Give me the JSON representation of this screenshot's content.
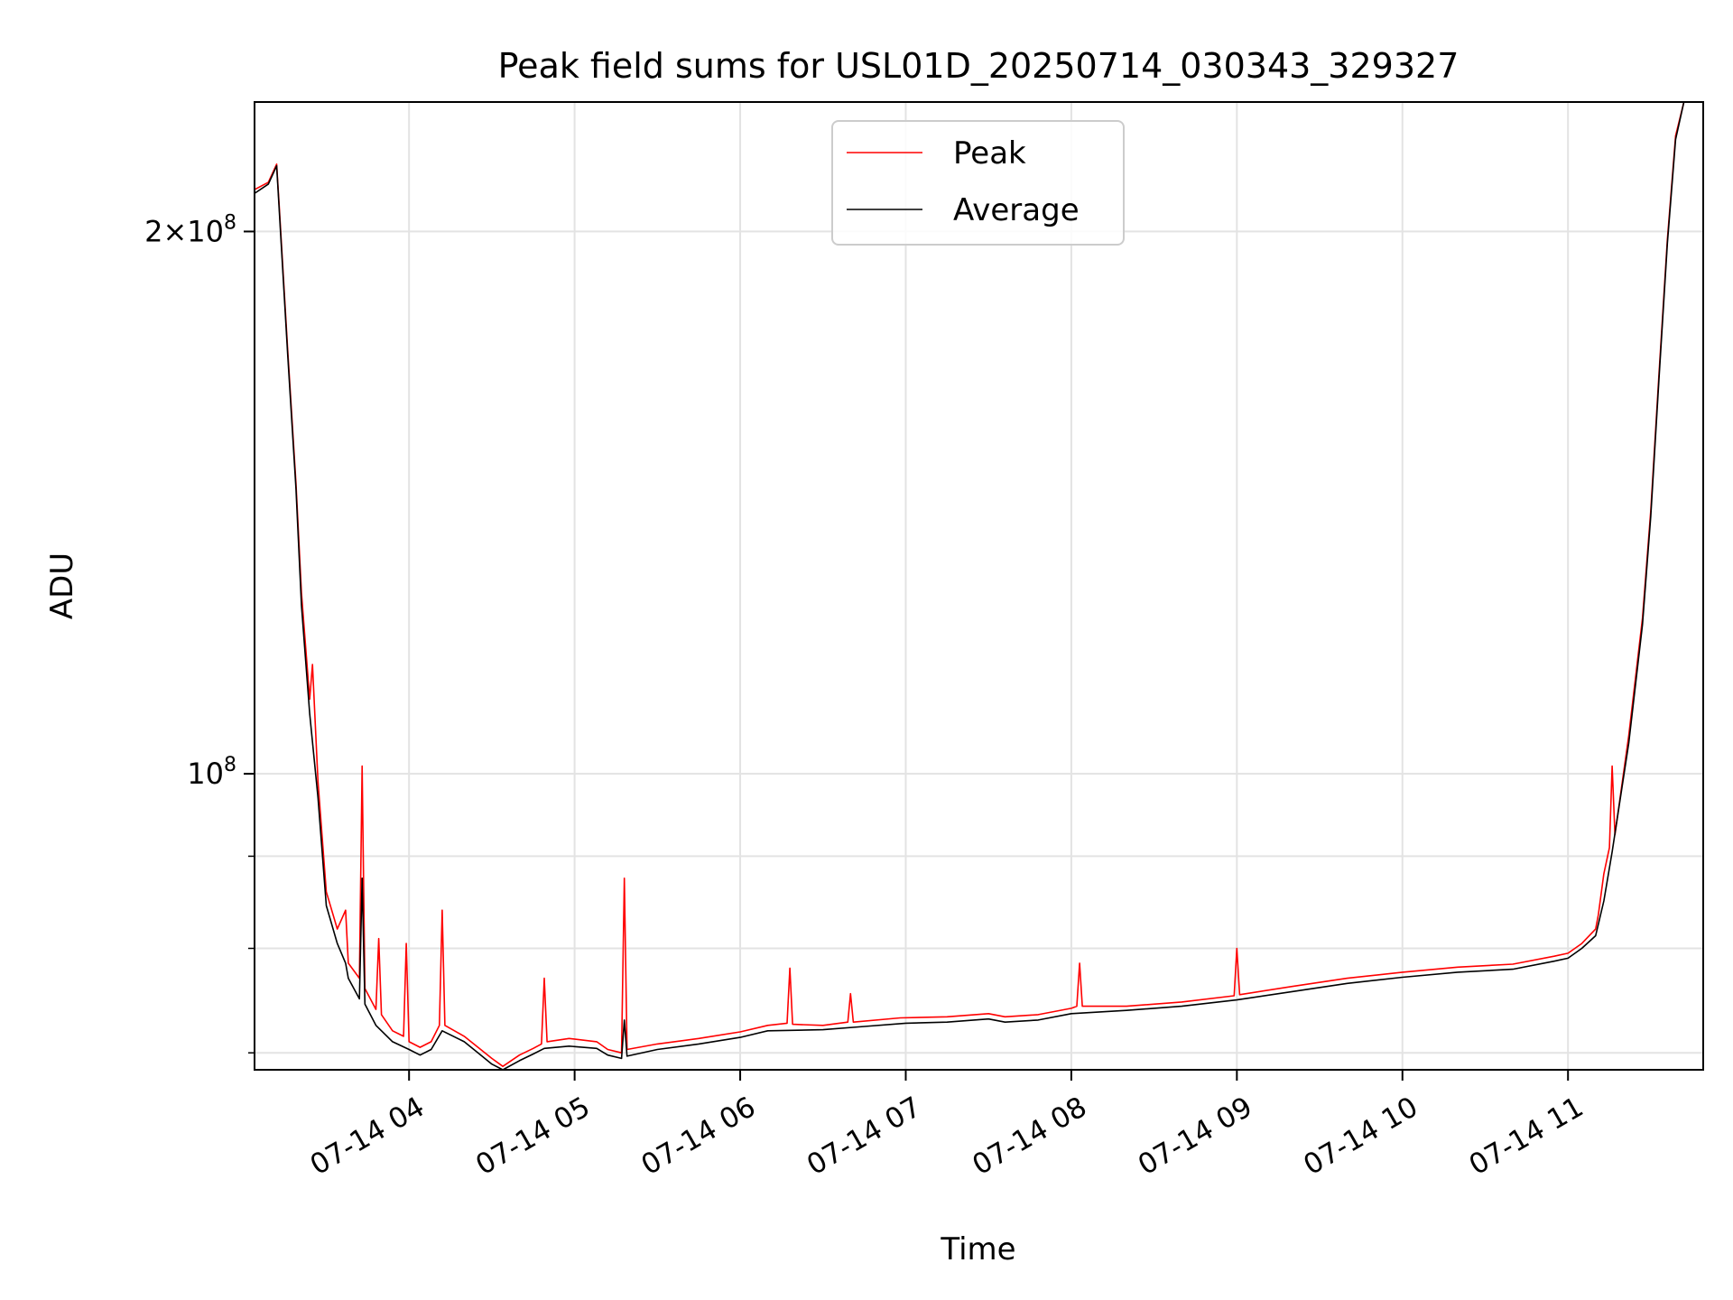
{
  "chart_data": {
    "type": "line",
    "title": "Peak field sums for USL01D_20250714_030343_329327",
    "xlabel": "Time",
    "ylabel": "ADU",
    "y_scale": "log",
    "xlim": [
      "2025-07-14 03:04",
      "2025-07-14 11:49"
    ],
    "ylim": [
      68500000,
      236000000
    ],
    "grid": true,
    "legend_position": "upper center",
    "x_tick_labels": [
      "07-14 04",
      "07-14 05",
      "07-14 06",
      "07-14 07",
      "07-14 08",
      "07-14 09",
      "07-14 10",
      "07-14 11"
    ],
    "x_ticks": [
      "2025-07-14 04:00",
      "2025-07-14 05:00",
      "2025-07-14 06:00",
      "2025-07-14 07:00",
      "2025-07-14 08:00",
      "2025-07-14 09:00",
      "2025-07-14 10:00",
      "2025-07-14 11:00"
    ],
    "y_major_ticks": [
      {
        "value": 200000000,
        "mantissa": "2",
        "exponent": "8"
      },
      {
        "value": 100000000,
        "mantissa": "",
        "exponent": "8"
      }
    ],
    "y_minor_ticks": [
      70000000,
      80000000,
      90000000
    ],
    "series": [
      {
        "name": "Peak",
        "color": "#ff0000",
        "points": [
          [
            "2025-07-14 03:04",
            211000000
          ],
          [
            "2025-07-14 03:09",
            213000000
          ],
          [
            "2025-07-14 03:12",
            218000000
          ],
          [
            "2025-07-14 03:13",
            206000000
          ],
          [
            "2025-07-14 03:16",
            172000000
          ],
          [
            "2025-07-14 03:19",
            145000000
          ],
          [
            "2025-07-14 03:21",
            126000000
          ],
          [
            "2025-07-14 03:24",
            110000000
          ],
          [
            "2025-07-14 03:25",
            115000000
          ],
          [
            "2025-07-14 03:27",
            99000000
          ],
          [
            "2025-07-14 03:30",
            86000000
          ],
          [
            "2025-07-14 03:34",
            82000000
          ],
          [
            "2025-07-14 03:37",
            84000000
          ],
          [
            "2025-07-14 03:38",
            78500000
          ],
          [
            "2025-07-14 03:42",
            77000000
          ],
          [
            "2025-07-14 03:43",
            101000000
          ],
          [
            "2025-07-14 03:44",
            76000000
          ],
          [
            "2025-07-14 03:48",
            74000000
          ],
          [
            "2025-07-14 03:49",
            81000000
          ],
          [
            "2025-07-14 03:50",
            73500000
          ],
          [
            "2025-07-14 03:54",
            72000000
          ],
          [
            "2025-07-14 03:58",
            71500000
          ],
          [
            "2025-07-14 03:59",
            80500000
          ],
          [
            "2025-07-14 04:00",
            71000000
          ],
          [
            "2025-07-14 04:04",
            70500000
          ],
          [
            "2025-07-14 04:08",
            71000000
          ],
          [
            "2025-07-14 04:11",
            72500000
          ],
          [
            "2025-07-14 04:12",
            84000000
          ],
          [
            "2025-07-14 04:13",
            72500000
          ],
          [
            "2025-07-14 04:20",
            71500000
          ],
          [
            "2025-07-14 04:25",
            70500000
          ],
          [
            "2025-07-14 04:30",
            69500000
          ],
          [
            "2025-07-14 04:34",
            68800000
          ],
          [
            "2025-07-14 04:40",
            69800000
          ],
          [
            "2025-07-14 04:45",
            70400000
          ],
          [
            "2025-07-14 04:48",
            70800000
          ],
          [
            "2025-07-14 04:49",
            77000000
          ],
          [
            "2025-07-14 04:50",
            71000000
          ],
          [
            "2025-07-14 04:58",
            71300000
          ],
          [
            "2025-07-14 05:08",
            71000000
          ],
          [
            "2025-07-14 05:12",
            70300000
          ],
          [
            "2025-07-14 05:17",
            70000000
          ],
          [
            "2025-07-14 05:18",
            87500000
          ],
          [
            "2025-07-14 05:19",
            70300000
          ],
          [
            "2025-07-14 05:30",
            70800000
          ],
          [
            "2025-07-14 05:45",
            71300000
          ],
          [
            "2025-07-14 06:00",
            71900000
          ],
          [
            "2025-07-14 06:10",
            72500000
          ],
          [
            "2025-07-14 06:17",
            72700000
          ],
          [
            "2025-07-14 06:18",
            78000000
          ],
          [
            "2025-07-14 06:19",
            72600000
          ],
          [
            "2025-07-14 06:30",
            72500000
          ],
          [
            "2025-07-14 06:39",
            72800000
          ],
          [
            "2025-07-14 06:40",
            75500000
          ],
          [
            "2025-07-14 06:41",
            72800000
          ],
          [
            "2025-07-14 06:58",
            73200000
          ],
          [
            "2025-07-14 07:15",
            73300000
          ],
          [
            "2025-07-14 07:30",
            73600000
          ],
          [
            "2025-07-14 07:36",
            73300000
          ],
          [
            "2025-07-14 07:48",
            73500000
          ],
          [
            "2025-07-14 08:00",
            74100000
          ],
          [
            "2025-07-14 08:02",
            74300000
          ],
          [
            "2025-07-14 08:03",
            78500000
          ],
          [
            "2025-07-14 08:04",
            74300000
          ],
          [
            "2025-07-14 08:20",
            74300000
          ],
          [
            "2025-07-14 08:40",
            74700000
          ],
          [
            "2025-07-14 08:59",
            75300000
          ],
          [
            "2025-07-14 09:00",
            80000000
          ],
          [
            "2025-07-14 09:01",
            75400000
          ],
          [
            "2025-07-14 09:20",
            76200000
          ],
          [
            "2025-07-14 09:40",
            77000000
          ],
          [
            "2025-07-14 10:00",
            77600000
          ],
          [
            "2025-07-14 10:20",
            78100000
          ],
          [
            "2025-07-14 10:40",
            78400000
          ],
          [
            "2025-07-14 10:55",
            79200000
          ],
          [
            "2025-07-14 11:00",
            79500000
          ],
          [
            "2025-07-14 11:05",
            80500000
          ],
          [
            "2025-07-14 11:10",
            82000000
          ],
          [
            "2025-07-14 11:11",
            83500000
          ],
          [
            "2025-07-14 11:13",
            88000000
          ],
          [
            "2025-07-14 11:15",
            91000000
          ],
          [
            "2025-07-14 11:16",
            101000000
          ],
          [
            "2025-07-14 11:17",
            92500000
          ],
          [
            "2025-07-14 11:22",
            105000000
          ],
          [
            "2025-07-14 11:27",
            122000000
          ],
          [
            "2025-07-14 11:30",
            140000000
          ],
          [
            "2025-07-14 11:33",
            167000000
          ],
          [
            "2025-07-14 11:36",
            198000000
          ],
          [
            "2025-07-14 11:39",
            226000000
          ],
          [
            "2025-07-14 11:42",
            236000000
          ],
          [
            "2025-07-14 11:49",
            236000000
          ]
        ]
      },
      {
        "name": "Average",
        "color": "#000000",
        "points": [
          [
            "2025-07-14 03:04",
            210000000
          ],
          [
            "2025-07-14 03:09",
            212500000
          ],
          [
            "2025-07-14 03:12",
            217500000
          ],
          [
            "2025-07-14 03:13",
            205000000
          ],
          [
            "2025-07-14 03:16",
            171000000
          ],
          [
            "2025-07-14 03:19",
            144000000
          ],
          [
            "2025-07-14 03:21",
            124000000
          ],
          [
            "2025-07-14 03:24",
            108000000
          ],
          [
            "2025-07-14 03:27",
            97000000
          ],
          [
            "2025-07-14 03:30",
            84500000
          ],
          [
            "2025-07-14 03:34",
            80500000
          ],
          [
            "2025-07-14 03:37",
            78500000
          ],
          [
            "2025-07-14 03:38",
            77000000
          ],
          [
            "2025-07-14 03:42",
            75000000
          ],
          [
            "2025-07-14 03:43",
            87500000
          ],
          [
            "2025-07-14 03:44",
            74500000
          ],
          [
            "2025-07-14 03:48",
            72500000
          ],
          [
            "2025-07-14 03:54",
            71000000
          ],
          [
            "2025-07-14 04:00",
            70300000
          ],
          [
            "2025-07-14 04:04",
            69800000
          ],
          [
            "2025-07-14 04:08",
            70300000
          ],
          [
            "2025-07-14 04:12",
            72000000
          ],
          [
            "2025-07-14 04:20",
            71000000
          ],
          [
            "2025-07-14 04:25",
            70000000
          ],
          [
            "2025-07-14 04:30",
            69000000
          ],
          [
            "2025-07-14 04:34",
            68500000
          ],
          [
            "2025-07-14 04:40",
            69300000
          ],
          [
            "2025-07-14 04:45",
            69900000
          ],
          [
            "2025-07-14 04:49",
            70400000
          ],
          [
            "2025-07-14 04:58",
            70600000
          ],
          [
            "2025-07-14 05:08",
            70400000
          ],
          [
            "2025-07-14 05:12",
            69800000
          ],
          [
            "2025-07-14 05:17",
            69500000
          ],
          [
            "2025-07-14 05:18",
            73000000
          ],
          [
            "2025-07-14 05:19",
            69700000
          ],
          [
            "2025-07-14 05:30",
            70300000
          ],
          [
            "2025-07-14 05:45",
            70800000
          ],
          [
            "2025-07-14 06:00",
            71400000
          ],
          [
            "2025-07-14 06:10",
            72000000
          ],
          [
            "2025-07-14 06:30",
            72100000
          ],
          [
            "2025-07-14 06:45",
            72400000
          ],
          [
            "2025-07-14 07:00",
            72700000
          ],
          [
            "2025-07-14 07:15",
            72800000
          ],
          [
            "2025-07-14 07:30",
            73100000
          ],
          [
            "2025-07-14 07:36",
            72800000
          ],
          [
            "2025-07-14 07:48",
            73000000
          ],
          [
            "2025-07-14 08:00",
            73600000
          ],
          [
            "2025-07-14 08:20",
            73900000
          ],
          [
            "2025-07-14 08:40",
            74300000
          ],
          [
            "2025-07-14 09:00",
            74900000
          ],
          [
            "2025-07-14 09:20",
            75700000
          ],
          [
            "2025-07-14 09:40",
            76500000
          ],
          [
            "2025-07-14 10:00",
            77100000
          ],
          [
            "2025-07-14 10:20",
            77600000
          ],
          [
            "2025-07-14 10:40",
            77900000
          ],
          [
            "2025-07-14 10:55",
            78700000
          ],
          [
            "2025-07-14 11:00",
            79000000
          ],
          [
            "2025-07-14 11:05",
            80000000
          ],
          [
            "2025-07-14 11:10",
            81300000
          ],
          [
            "2025-07-14 11:13",
            85000000
          ],
          [
            "2025-07-14 11:16",
            90500000
          ],
          [
            "2025-07-14 11:22",
            104000000
          ],
          [
            "2025-07-14 11:27",
            121000000
          ],
          [
            "2025-07-14 11:30",
            139000000
          ],
          [
            "2025-07-14 11:33",
            166000000
          ],
          [
            "2025-07-14 11:36",
            197000000
          ],
          [
            "2025-07-14 11:39",
            225000000
          ],
          [
            "2025-07-14 11:42",
            236000000
          ],
          [
            "2025-07-14 11:49",
            236000000
          ]
        ]
      }
    ]
  }
}
